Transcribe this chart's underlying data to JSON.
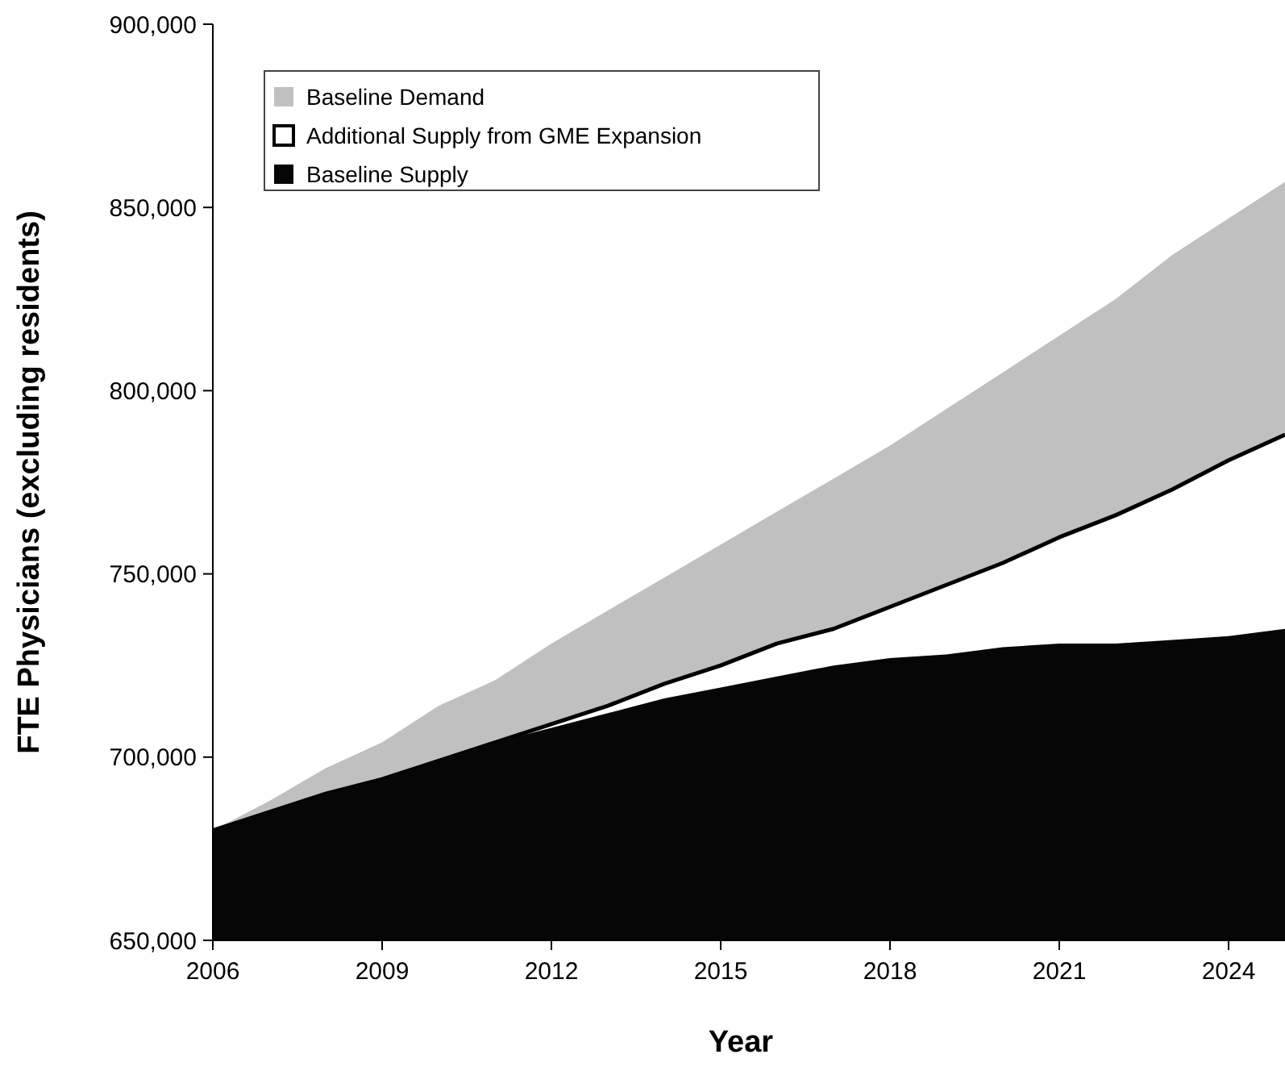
{
  "chart_data": {
    "type": "area",
    "xlabel": "Year",
    "ylabel": "FTE Physicians (excluding residents)",
    "x": [
      2006,
      2007,
      2008,
      2009,
      2010,
      2011,
      2012,
      2013,
      2014,
      2015,
      2016,
      2017,
      2018,
      2019,
      2020,
      2021,
      2022,
      2023,
      2024,
      2025
    ],
    "series": [
      {
        "name": "Baseline Demand",
        "color": "#c0c0c0",
        "values": [
          680000,
          688000,
          697000,
          704000,
          714000,
          721000,
          731000,
          740000,
          749000,
          758000,
          767000,
          776000,
          785000,
          795000,
          805000,
          815000,
          825000,
          837000,
          847000,
          857000
        ]
      },
      {
        "name": "Additional Supply from GME Expansion",
        "color": "#ffffff",
        "values": [
          680000,
          685000,
          690000,
          694000,
          699000,
          704000,
          709000,
          714000,
          720000,
          725000,
          731000,
          735000,
          741000,
          747000,
          753000,
          760000,
          766000,
          773000,
          781000,
          788000
        ]
      },
      {
        "name": "Baseline Supply",
        "color": "#060606",
        "values": [
          680000,
          685000,
          690000,
          694000,
          699000,
          704000,
          708000,
          712000,
          716000,
          719000,
          722000,
          725000,
          727000,
          728000,
          730000,
          731000,
          731000,
          732000,
          733000,
          735000
        ]
      }
    ],
    "xlim": [
      2006,
      2025
    ],
    "xticks": [
      2006,
      2009,
      2012,
      2015,
      2018,
      2021,
      2024
    ],
    "ylim": [
      650000,
      900000
    ],
    "yticks": [
      {
        "value": 650000,
        "label": "650,000"
      },
      {
        "value": 700000,
        "label": "700,000"
      },
      {
        "value": 750000,
        "label": "750,000"
      },
      {
        "value": 800000,
        "label": "800,000"
      },
      {
        "value": 850000,
        "label": "850,000"
      },
      {
        "value": 900000,
        "label": "900,000"
      }
    ],
    "legend": "top left",
    "grid": false
  }
}
